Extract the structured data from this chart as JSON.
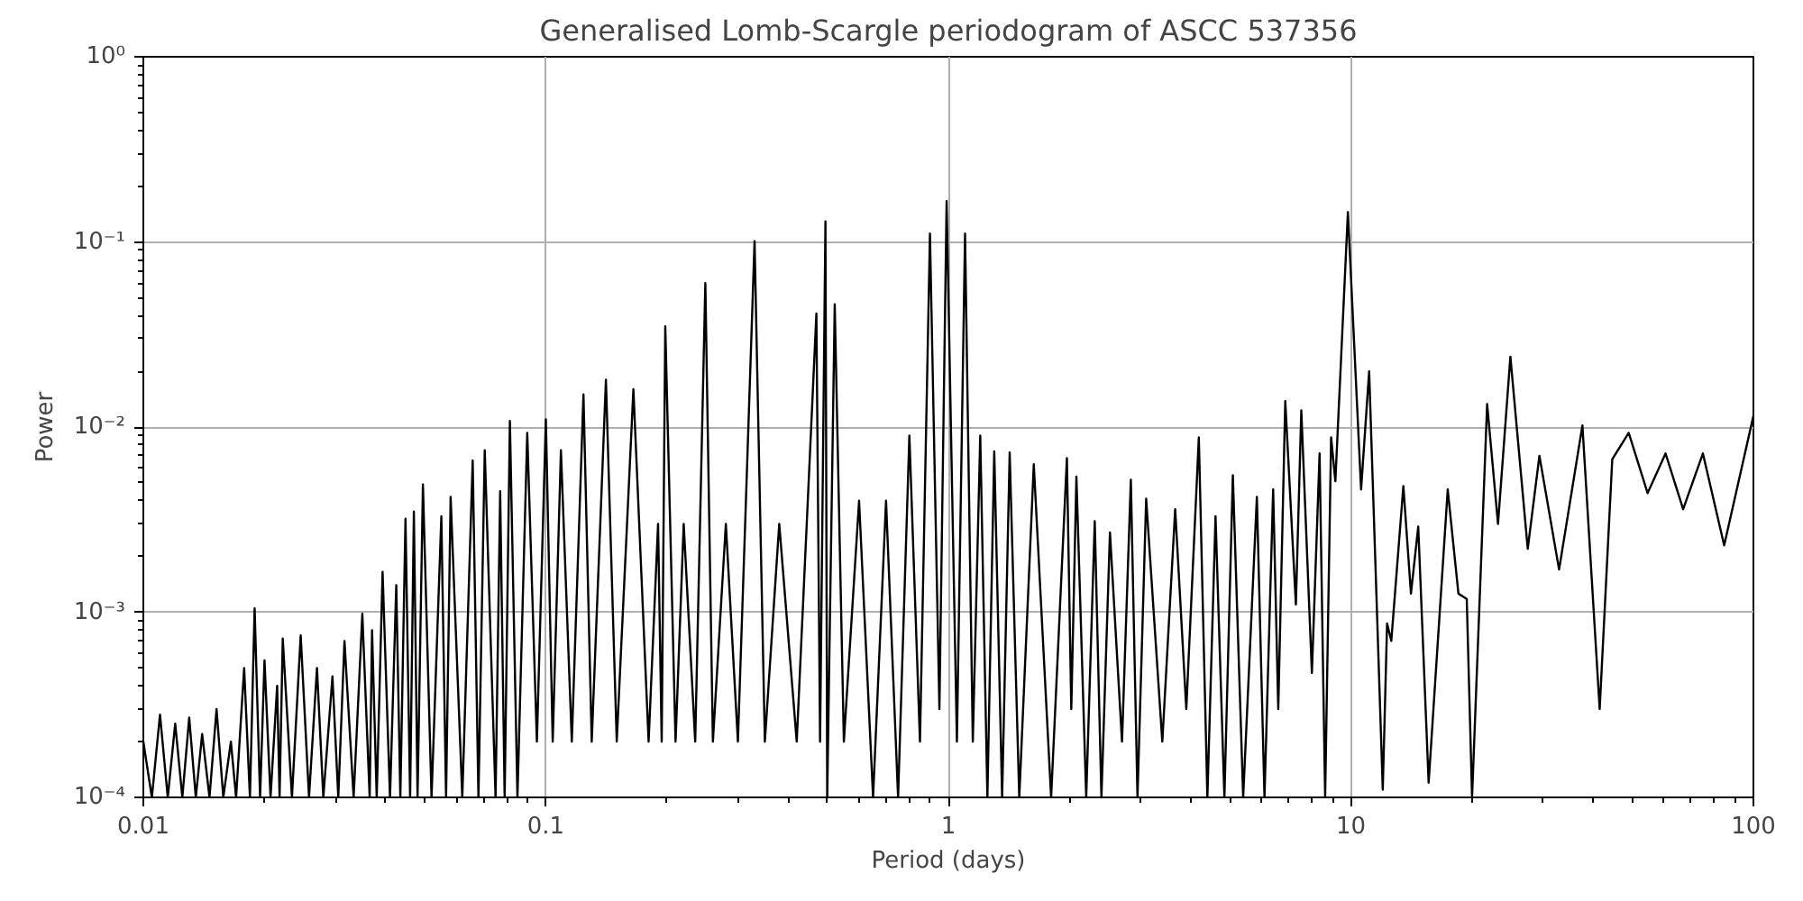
{
  "chart_data": {
    "type": "line",
    "title": "Generalised Lomb-Scargle periodogram of ASCC 537356",
    "xlabel": "Period (days)",
    "ylabel": "Power",
    "log": "xy",
    "grid": true,
    "xlim": [
      0.01,
      100
    ],
    "ylim": [
      0.0001,
      1
    ],
    "xticks": [
      0.01,
      0.1,
      1,
      10,
      100
    ],
    "yticks": [
      {
        "value": 0.0001,
        "label": "10⁻⁴"
      },
      {
        "value": 0.001,
        "label": "10⁻³"
      },
      {
        "value": 0.01,
        "label": "10⁻²"
      },
      {
        "value": 0.1,
        "label": "10⁻¹"
      },
      {
        "value": 1,
        "label": "10⁰"
      }
    ],
    "series": [
      {
        "color": "#000000",
        "x": [
          0.01,
          0.0105,
          0.011,
          0.0115,
          0.012,
          0.0125,
          0.013,
          0.0135,
          0.014,
          0.0146,
          0.0152,
          0.0158,
          0.0165,
          0.017,
          0.0178,
          0.0184,
          0.0189,
          0.0195,
          0.02,
          0.0207,
          0.0215,
          0.0218,
          0.0222,
          0.0234,
          0.0246,
          0.0258,
          0.027,
          0.028,
          0.0295,
          0.0305,
          0.0316,
          0.0333,
          0.035,
          0.0365,
          0.037,
          0.038,
          0.0393,
          0.041,
          0.0425,
          0.0435,
          0.0448,
          0.046,
          0.047,
          0.048,
          0.0495,
          0.052,
          0.055,
          0.0565,
          0.058,
          0.062,
          0.0658,
          0.068,
          0.0705,
          0.075,
          0.077,
          0.079,
          0.0814,
          0.085,
          0.0899,
          0.095,
          0.1,
          0.104,
          0.109,
          0.116,
          0.124,
          0.13,
          0.141,
          0.15,
          0.165,
          0.18,
          0.19,
          0.194,
          0.198,
          0.21,
          0.22,
          0.235,
          0.249,
          0.26,
          0.28,
          0.3,
          0.33,
          0.35,
          0.38,
          0.42,
          0.47,
          0.48,
          0.495,
          0.5,
          0.522,
          0.55,
          0.6,
          0.65,
          0.7,
          0.75,
          0.8,
          0.85,
          0.9,
          0.95,
          0.99,
          1.05,
          1.1,
          1.15,
          1.2,
          1.25,
          1.3,
          1.36,
          1.42,
          1.5,
          1.63,
          1.8,
          1.97,
          2.02,
          2.08,
          2.2,
          2.31,
          2.4,
          2.52,
          2.7,
          2.84,
          2.95,
          3.1,
          3.4,
          3.66,
          3.9,
          4.19,
          4.4,
          4.61,
          4.85,
          5.09,
          5.4,
          5.84,
          6.1,
          6.41,
          6.6,
          6.87,
          7.3,
          7.53,
          8.0,
          8.36,
          8.63,
          8.93,
          9.15,
          9.83,
          10.6,
          11.1,
          12.0,
          12.3,
          12.6,
          13.5,
          14.1,
          14.7,
          15.6,
          17.4,
          18.5,
          19.4,
          20.0,
          21.8,
          23.2,
          24.9,
          27.5,
          29.4,
          32.9,
          37.6,
          41.5,
          44.6,
          49.0,
          54.6,
          60.5,
          66.9,
          74.9,
          84.6,
          100
        ],
        "values": [
          0.0002,
          0.0001,
          0.00028,
          0.0001,
          0.00025,
          0.0001,
          0.00027,
          0.0001,
          0.00022,
          0.0001,
          0.0003,
          0.0001,
          0.0002,
          0.0001,
          0.0005,
          0.0001,
          0.00105,
          0.0001,
          0.00055,
          0.0001,
          0.0004,
          0.0001,
          0.00072,
          0.0001,
          0.00075,
          0.0001,
          0.0005,
          0.0001,
          0.00045,
          0.0001,
          0.0007,
          0.0001,
          0.00098,
          0.0001,
          0.0008,
          0.0001,
          0.00165,
          0.0001,
          0.0014,
          0.0001,
          0.0032,
          0.0001,
          0.0035,
          0.0001,
          0.0049,
          0.0001,
          0.0033,
          0.0001,
          0.0042,
          0.0001,
          0.0066,
          0.0001,
          0.0075,
          0.0001,
          0.0045,
          0.0001,
          0.0108,
          0.0001,
          0.0093,
          0.0002,
          0.011,
          0.0002,
          0.0075,
          0.0002,
          0.015,
          0.0002,
          0.018,
          0.0002,
          0.016,
          0.0002,
          0.003,
          0.0002,
          0.035,
          0.0002,
          0.003,
          0.0002,
          0.06,
          0.0002,
          0.003,
          0.0002,
          0.101,
          0.0002,
          0.003,
          0.0002,
          0.041,
          0.0002,
          0.129,
          0.0001,
          0.046,
          0.0002,
          0.004,
          0.0001,
          0.004,
          0.0001,
          0.009,
          0.0002,
          0.111,
          0.0003,
          0.166,
          0.0002,
          0.111,
          0.0002,
          0.009,
          0.0001,
          0.0074,
          0.0001,
          0.0073,
          0.0001,
          0.0063,
          0.0001,
          0.0068,
          0.0003,
          0.0054,
          0.0001,
          0.0031,
          0.0001,
          0.0027,
          0.0002,
          0.0052,
          0.0001,
          0.0041,
          0.0002,
          0.0036,
          0.0003,
          0.0088,
          0.0001,
          0.0033,
          0.0001,
          0.0055,
          0.0001,
          0.0042,
          0.0001,
          0.0046,
          0.0003,
          0.0138,
          0.0011,
          0.0123,
          0.00047,
          0.0072,
          0.0001,
          0.0088,
          0.0051,
          0.145,
          0.0046,
          0.02,
          0.00011,
          0.00087,
          0.0007,
          0.0048,
          0.00126,
          0.0029,
          0.00012,
          0.0046,
          0.00126,
          0.00118,
          0.0001,
          0.0133,
          0.003,
          0.024,
          0.0022,
          0.007,
          0.0017,
          0.0102,
          0.0003,
          0.0067,
          0.0093,
          0.0044,
          0.0072,
          0.0036,
          0.0072,
          0.0023,
          0.0115
        ]
      }
    ]
  }
}
